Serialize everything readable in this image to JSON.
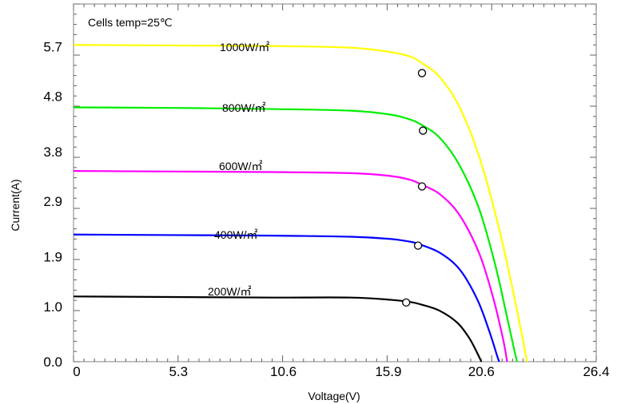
{
  "chart_data": {
    "type": "line",
    "annotation": "Cells temp=25℃",
    "xlabel": "Voltage(V)",
    "ylabel": "Current(A)",
    "xlim": [
      0,
      26.4
    ],
    "ylim": [
      0,
      6.47
    ],
    "x_ticks": [
      0,
      5.3,
      10.6,
      15.9,
      20.6,
      26.4
    ],
    "x_tick_labels": [
      "0",
      "5.3",
      "10.6",
      "15.9",
      "20.6",
      "26.4"
    ],
    "y_ticks": [
      0.0,
      1.0,
      1.9,
      2.9,
      3.8,
      4.8,
      5.7
    ],
    "y_tick_labels": [
      "0.0",
      "1.0",
      "1.9",
      "2.9",
      "3.8",
      "4.8",
      "5.7"
    ],
    "series": [
      {
        "name": "1000W/㎡",
        "color": "#ffff00",
        "points": [
          [
            0,
            5.73
          ],
          [
            5,
            5.72
          ],
          [
            10,
            5.71
          ],
          [
            14,
            5.68
          ],
          [
            16,
            5.6
          ],
          [
            17,
            5.52
          ],
          [
            17.6,
            5.4
          ],
          [
            18.5,
            5.15
          ],
          [
            19.5,
            4.6
          ],
          [
            20.5,
            3.7
          ],
          [
            21.5,
            2.4
          ],
          [
            22.3,
            1.1
          ],
          [
            22.8,
            0.2
          ],
          [
            22.9,
            0.0
          ]
        ],
        "mpp": [
          17.6,
          5.22
        ]
      },
      {
        "name": "800W/㎡",
        "color": "#00ee00",
        "points": [
          [
            0,
            4.6
          ],
          [
            5,
            4.59
          ],
          [
            10,
            4.57
          ],
          [
            14,
            4.54
          ],
          [
            16,
            4.47
          ],
          [
            17,
            4.38
          ],
          [
            17.6,
            4.28
          ],
          [
            18.5,
            4.05
          ],
          [
            19.5,
            3.55
          ],
          [
            20.5,
            2.75
          ],
          [
            21.3,
            1.75
          ],
          [
            21.9,
            0.8
          ],
          [
            22.3,
            0.15
          ],
          [
            22.4,
            0.0
          ]
        ],
        "mpp": [
          17.65,
          4.18
        ]
      },
      {
        "name": "600W/㎡",
        "color": "#ff00ff",
        "points": [
          [
            0,
            3.45
          ],
          [
            5,
            3.44
          ],
          [
            10,
            3.43
          ],
          [
            14,
            3.41
          ],
          [
            16,
            3.36
          ],
          [
            17,
            3.29
          ],
          [
            17.6,
            3.2
          ],
          [
            18.5,
            3.03
          ],
          [
            19.5,
            2.65
          ],
          [
            20.5,
            1.95
          ],
          [
            21.2,
            1.15
          ],
          [
            21.7,
            0.4
          ],
          [
            21.9,
            0.0
          ]
        ],
        "mpp": [
          17.6,
          3.17
        ]
      },
      {
        "name": "400W/㎡",
        "color": "#0000ff",
        "points": [
          [
            0,
            2.3
          ],
          [
            5,
            2.29
          ],
          [
            10,
            2.28
          ],
          [
            14,
            2.26
          ],
          [
            16,
            2.22
          ],
          [
            17,
            2.17
          ],
          [
            17.5,
            2.12
          ],
          [
            18.5,
            1.97
          ],
          [
            19.5,
            1.67
          ],
          [
            20.4,
            1.12
          ],
          [
            21.0,
            0.55
          ],
          [
            21.4,
            0.1
          ],
          [
            21.5,
            0.0
          ]
        ],
        "mpp": [
          17.4,
          2.1
        ]
      },
      {
        "name": "200W/㎡",
        "color": "#000000",
        "points": [
          [
            0,
            1.18
          ],
          [
            5,
            1.17
          ],
          [
            10,
            1.16
          ],
          [
            14,
            1.16
          ],
          [
            16,
            1.12
          ],
          [
            17,
            1.08
          ],
          [
            17.6,
            1.03
          ],
          [
            18.5,
            0.92
          ],
          [
            19.4,
            0.7
          ],
          [
            20.0,
            0.42
          ],
          [
            20.4,
            0.15
          ],
          [
            20.6,
            0.0
          ]
        ],
        "mpp": [
          16.8,
          1.07
        ]
      }
    ]
  }
}
